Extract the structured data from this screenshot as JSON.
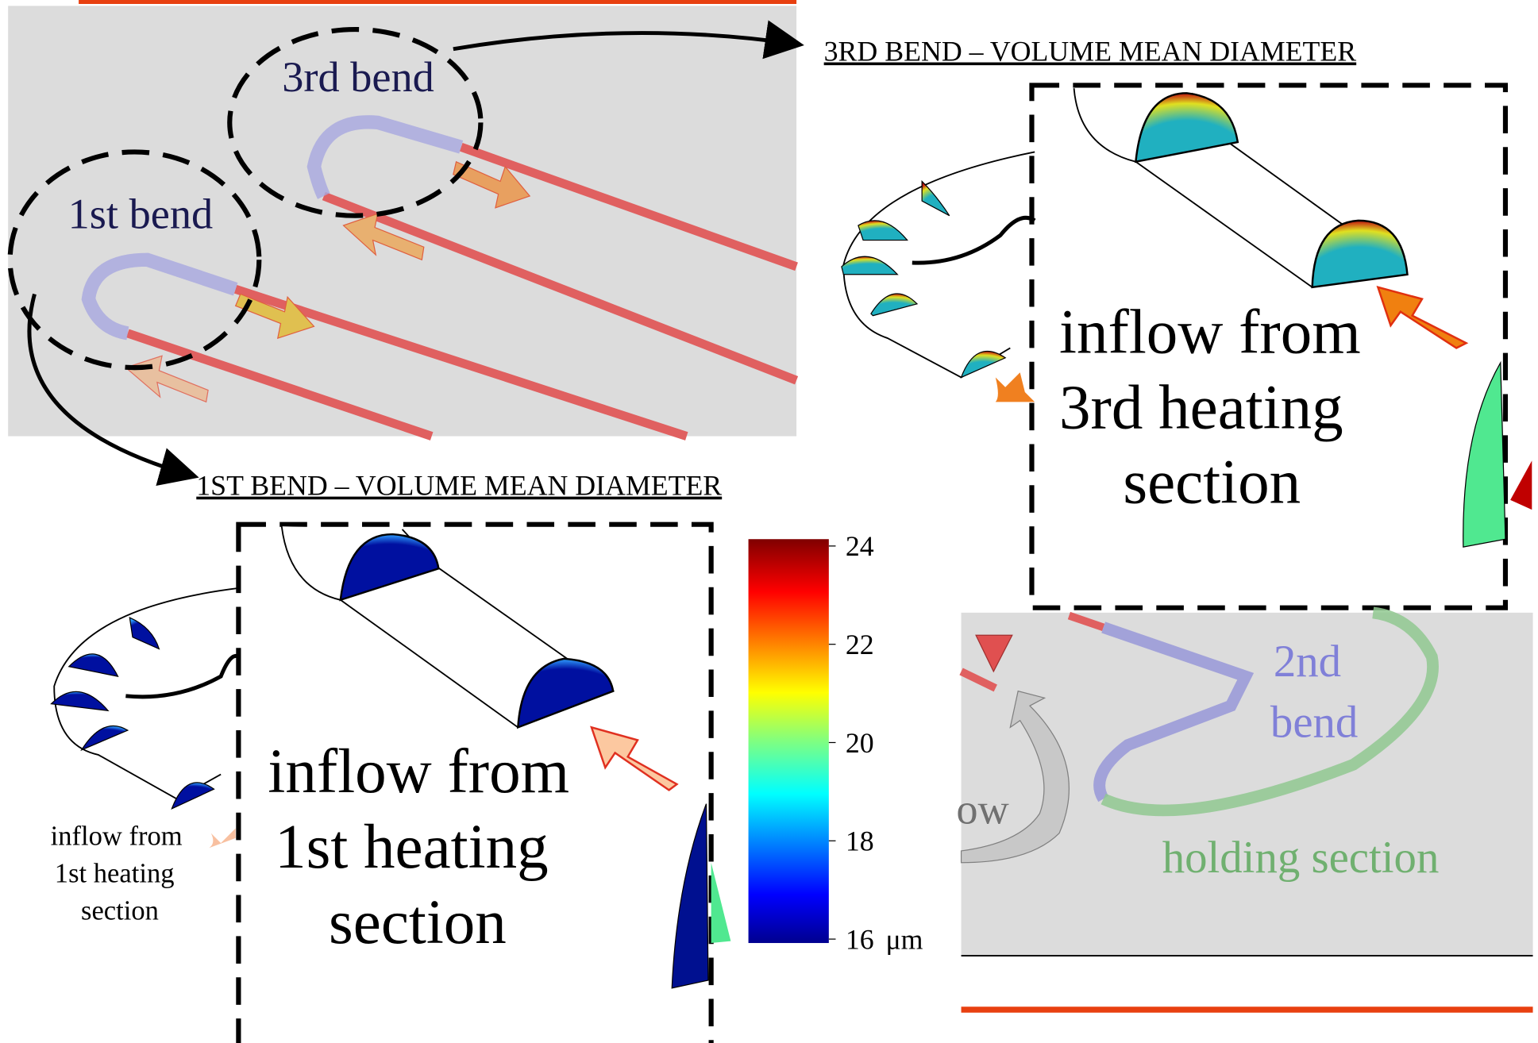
{
  "top_panel": {
    "labels": [
      "3rd bend",
      "1st bend"
    ]
  },
  "panels": [
    {
      "title": "3RD BEND – VOLUME MEAN DIAMETER",
      "inflow_label": [
        "inflow from",
        "3rd heating",
        "section"
      ]
    },
    {
      "title": "1ST BEND – VOLUME MEAN DIAMETER",
      "inflow_label": [
        "inflow from",
        "1st heating",
        "section"
      ],
      "small_label": [
        "inflow from",
        "1st heating",
        "section"
      ]
    }
  ],
  "colorbar": {
    "ticks": [
      24,
      22,
      20,
      18,
      16
    ],
    "unit": "μm"
  },
  "bottom_panel": {
    "labels": [
      "2nd",
      "bend",
      "holding section",
      "ow"
    ]
  }
}
